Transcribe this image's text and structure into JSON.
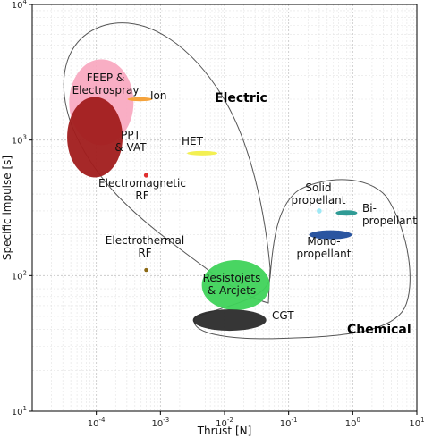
{
  "chart_data": {
    "type": "scatter",
    "title": "",
    "xlabel": "Thrust [N]",
    "ylabel": "Specific impulse [s]",
    "xscale": "log",
    "yscale": "log",
    "xlim": [
      1e-05,
      10
    ],
    "ylim": [
      10,
      10000
    ],
    "grid": true,
    "x_ticks": [
      {
        "value": 0.0001,
        "base": "10",
        "exp": "-4"
      },
      {
        "value": 0.001,
        "base": "10",
        "exp": "-3"
      },
      {
        "value": 0.01,
        "base": "10",
        "exp": "-2"
      },
      {
        "value": 0.1,
        "base": "10",
        "exp": "-1"
      },
      {
        "value": 1,
        "base": "10",
        "exp": "0"
      },
      {
        "value": 10,
        "base": "10",
        "exp": "1"
      }
    ],
    "y_ticks": [
      {
        "value": 10,
        "base": "10",
        "exp": "1"
      },
      {
        "value": 100,
        "base": "10",
        "exp": "2"
      },
      {
        "value": 1000,
        "base": "10",
        "exp": "3"
      },
      {
        "value": 10000,
        "base": "10",
        "exp": "4"
      }
    ],
    "groups": [
      {
        "label": "Electric"
      },
      {
        "label": "Chemical"
      }
    ],
    "regions": [
      {
        "label_lines": [
          "FEEP &",
          "Electrospray"
        ],
        "x": 0.00012,
        "y": 1900,
        "color": "#f8a5be"
      },
      {
        "label_lines": [
          "PPT",
          "& VAT"
        ],
        "x": 9.5e-05,
        "y": 1050,
        "color": "#a11c1c"
      },
      {
        "label_lines": [
          "Ion"
        ],
        "x": 0.00048,
        "y": 2000,
        "color": "#f5a33c"
      },
      {
        "label_lines": [
          "HET"
        ],
        "x": 0.0045,
        "y": 800,
        "color": "#f3f052"
      },
      {
        "label_lines": [
          "Electromagnetic",
          "RF"
        ],
        "x": 0.0006,
        "y": 550,
        "color": "#e03030"
      },
      {
        "label_lines": [
          "Electrothermal",
          "RF"
        ],
        "x": 0.0006,
        "y": 110,
        "color": "#8b6914"
      },
      {
        "label_lines": [
          "Resistojets",
          "& Arcjets"
        ],
        "x": 0.015,
        "y": 85,
        "color": "#3fd35a"
      },
      {
        "label_lines": [
          "CGT"
        ],
        "x": 0.012,
        "y": 47,
        "color": "#2b2b2b"
      },
      {
        "label_lines": [
          "Solid",
          "propellant"
        ],
        "x": 0.3,
        "y": 300,
        "color": "#9ee8f5"
      },
      {
        "label_lines": [
          "Bi-",
          "propellant"
        ],
        "x": 0.8,
        "y": 290,
        "color": "#2f9b95"
      },
      {
        "label_lines": [
          "Mono-",
          "propellant"
        ],
        "x": 0.45,
        "y": 200,
        "color": "#2a55a0"
      }
    ]
  }
}
